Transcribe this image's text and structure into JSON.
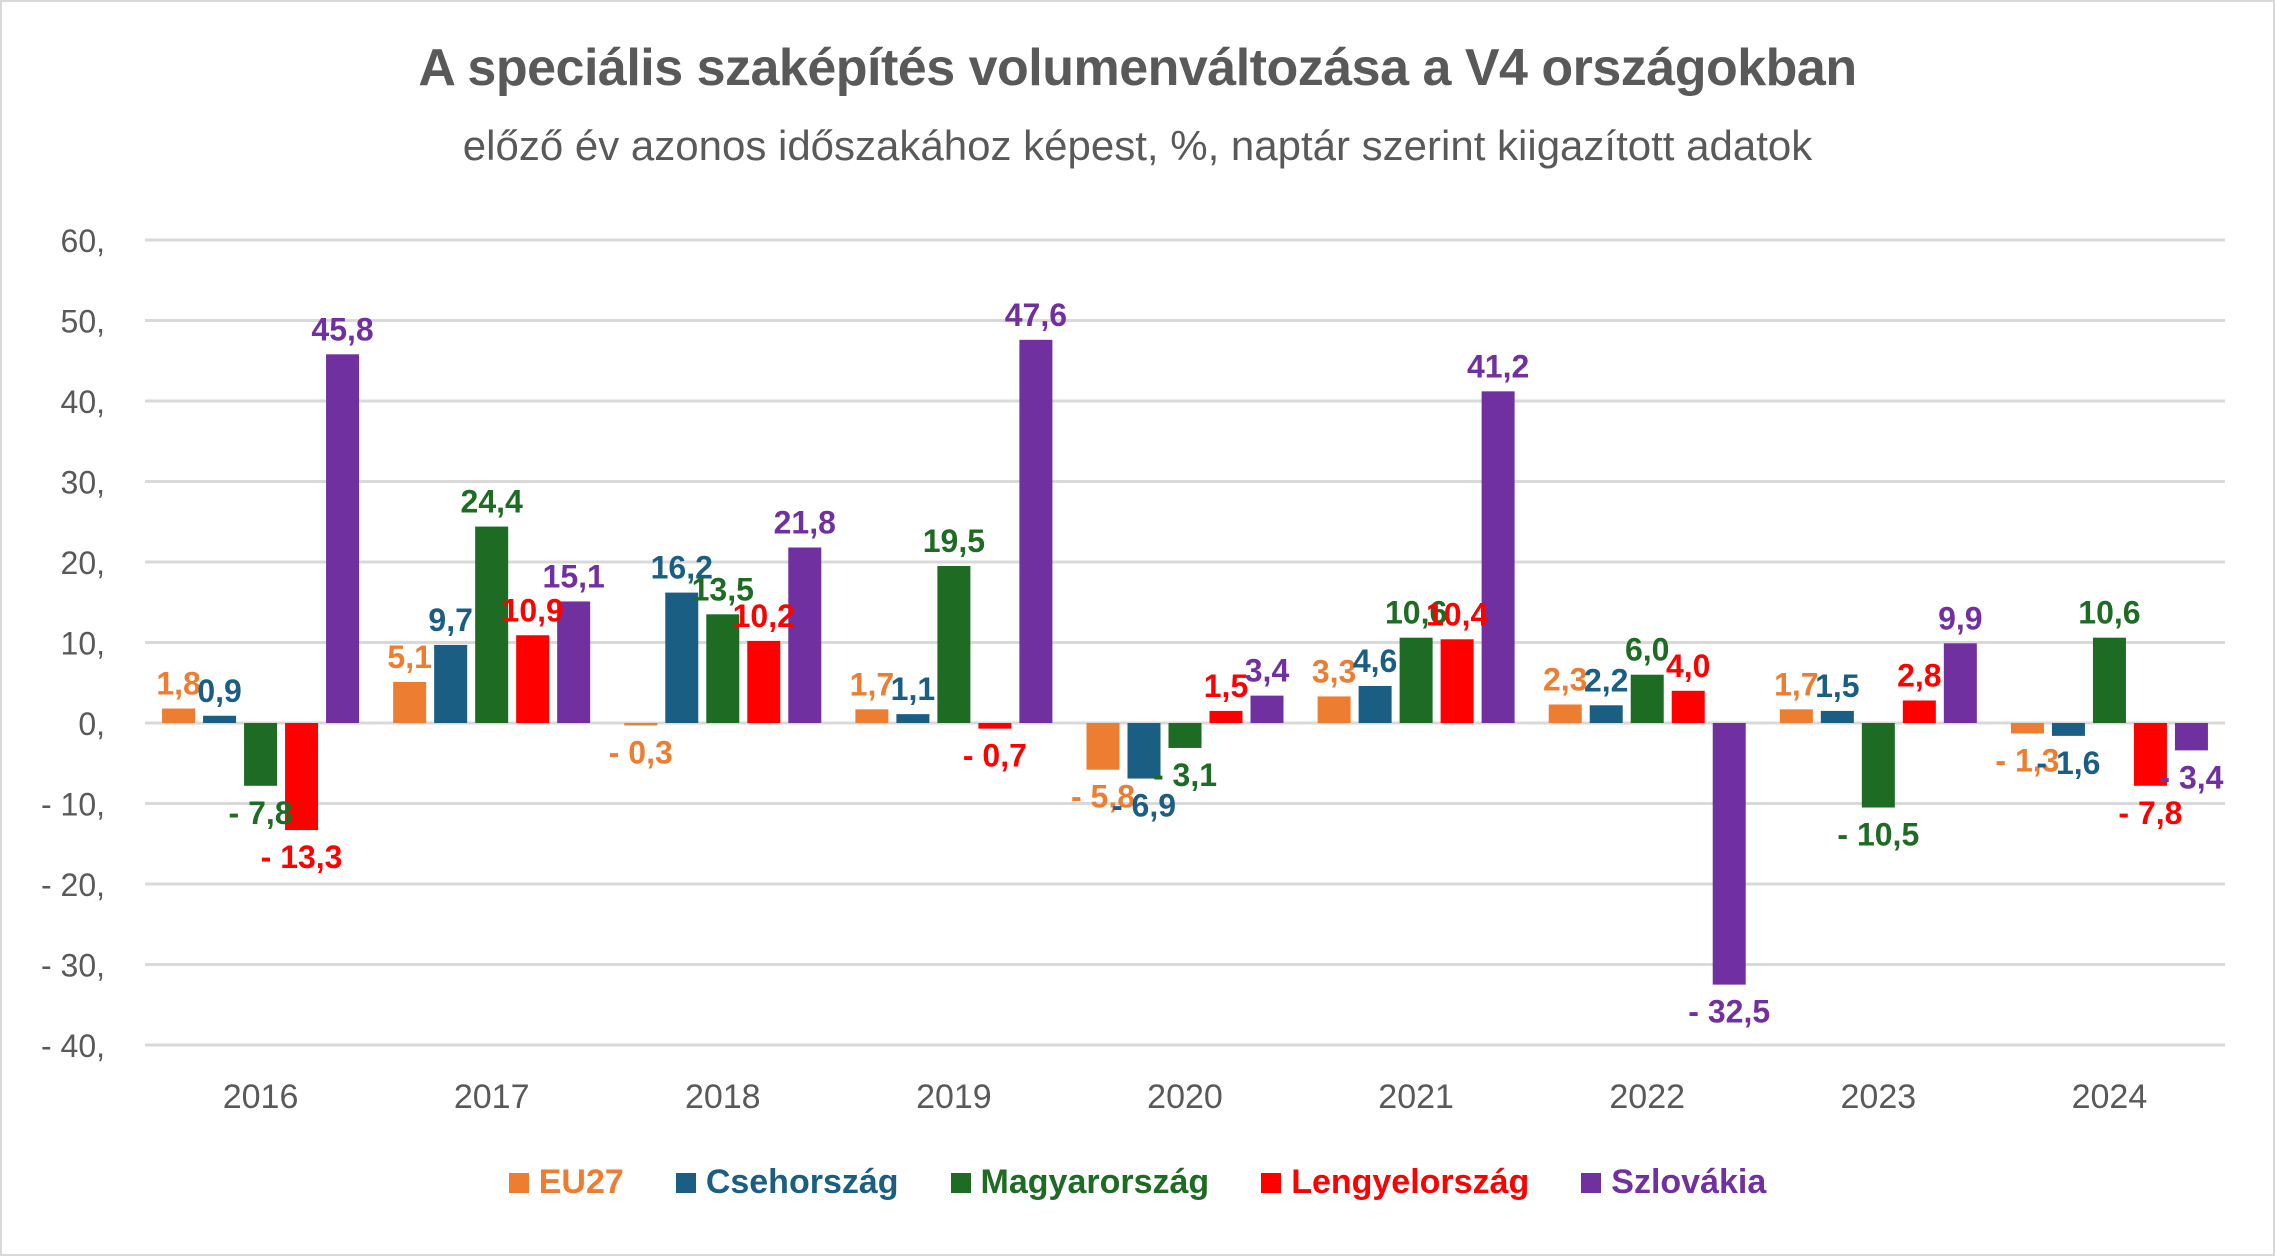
{
  "chart_data": {
    "type": "bar",
    "title": "A speciális szaképítés volumenváltozása a V4 országokban",
    "subtitle": "előző év azonos időszakához képest, %, naptár szerint kiigazított adatok",
    "xlabel": "",
    "ylabel": "",
    "ylim": [
      -40,
      60
    ],
    "yticks": [
      60,
      50,
      40,
      30,
      20,
      10,
      0,
      -10,
      -20,
      -30,
      -40
    ],
    "ytick_labels": [
      "60,",
      "50,",
      "40,",
      "30,",
      "20,",
      "10,",
      "0,",
      "- 10,",
      "- 20,",
      "- 30,",
      "- 40,"
    ],
    "grid": true,
    "legend_position": "bottom",
    "categories": [
      "2016",
      "2017",
      "2018",
      "2019",
      "2020",
      "2021",
      "2022",
      "2023",
      "2024"
    ],
    "series": [
      {
        "name": "EU27",
        "color": "#ED7D31",
        "values": [
          1.8,
          5.1,
          -0.3,
          1.7,
          -5.8,
          3.3,
          2.3,
          1.7,
          -1.3
        ],
        "labels": [
          "1,8",
          "5,1",
          "- 0,3",
          "1,7",
          "- 5,8",
          "3,3",
          "2,3",
          "1,7",
          "- 1,3"
        ]
      },
      {
        "name": "Csehország",
        "color": "#1B5E83",
        "values": [
          0.9,
          9.7,
          16.2,
          1.1,
          -6.9,
          4.6,
          2.2,
          1.5,
          -1.6
        ],
        "labels": [
          "0,9",
          "9,7",
          "16,2",
          "1,1",
          "- 6,9",
          "4,6",
          "2,2",
          "1,5",
          "- 1,6"
        ]
      },
      {
        "name": "Magyarország",
        "color": "#1E6B24",
        "values": [
          -7.8,
          24.4,
          13.5,
          19.5,
          -3.1,
          10.6,
          6.0,
          -10.5,
          10.6
        ],
        "labels": [
          "- 7,8",
          "24,4",
          "13,5",
          "19,5",
          "- 3,1",
          "10,6",
          "6,0",
          "- 10,5",
          "10,6"
        ]
      },
      {
        "name": "Lengyelország",
        "color": "#FF0000",
        "values": [
          -13.3,
          10.9,
          10.2,
          -0.7,
          1.5,
          10.4,
          4.0,
          2.8,
          -7.8
        ],
        "labels": [
          "- 13,3",
          "10,9",
          "10,2",
          "- 0,7",
          "1,5",
          "10,4",
          "4,0",
          "2,8",
          "- 7,8"
        ]
      },
      {
        "name": "Szlovákia",
        "color": "#7030A0",
        "values": [
          45.8,
          15.1,
          21.8,
          47.6,
          3.4,
          41.2,
          -32.5,
          9.9,
          -3.4
        ],
        "labels": [
          "45,8",
          "15,1",
          "21,8",
          "47,6",
          "3,4",
          "41,2",
          "- 32,5",
          "9,9",
          "- 3,4"
        ]
      }
    ]
  },
  "colors": {
    "title": "#595959",
    "axis_text": "#595959",
    "grid": "#d9d9d9"
  }
}
